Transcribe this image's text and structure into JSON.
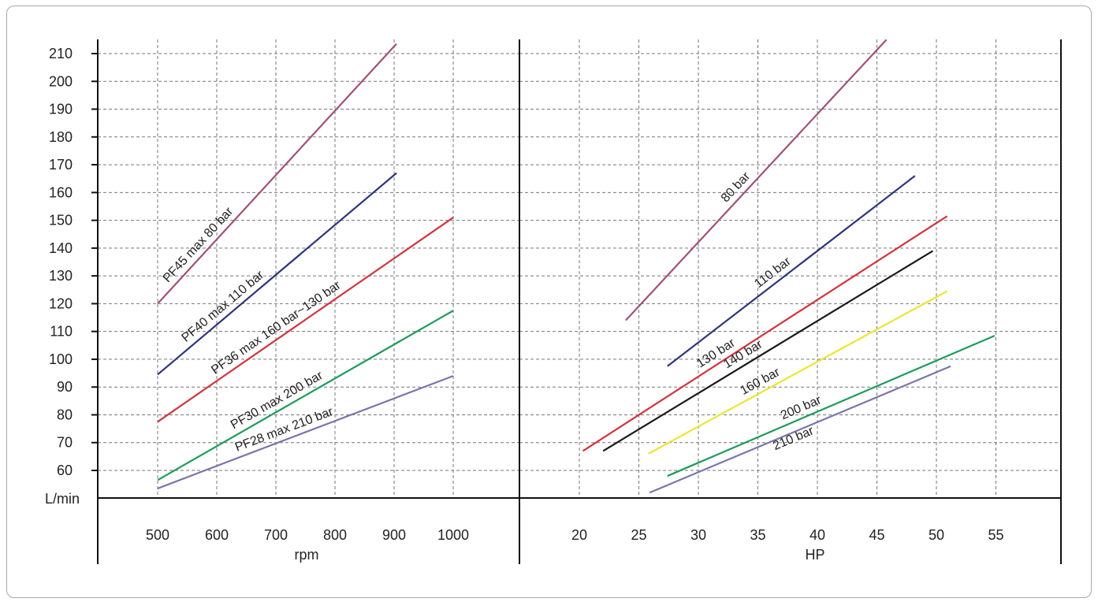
{
  "chart_data": [
    {
      "type": "line",
      "y_unit_label": "L/min",
      "xlabel": "rpm",
      "x_ticks": [
        "500",
        "600",
        "700",
        "800",
        "900",
        "1000"
      ],
      "y_ticks": [
        "60",
        "70",
        "80",
        "90",
        "100",
        "110",
        "120",
        "130",
        "140",
        "150",
        "160",
        "170",
        "180",
        "190",
        "200",
        "210"
      ],
      "xlim": [
        400,
        1110
      ],
      "ylim": [
        50,
        216
      ],
      "grid": true,
      "series": [
        {
          "name": "PF45 max 80 bar",
          "color": "#a0507a",
          "points": [
            [
              500,
              120
            ],
            [
              904,
              213.5
            ]
          ]
        },
        {
          "name": "PF40 max 110 bar",
          "color": "#2e3579",
          "points": [
            [
              500,
              94.5
            ],
            [
              904,
              167
            ]
          ]
        },
        {
          "name": "PF36 max 160 bar~130 bar",
          "color": "#d0343f",
          "points": [
            [
              500,
              77.5
            ],
            [
              1000,
              151
            ]
          ]
        },
        {
          "name": "PF30 max 200 bar",
          "color": "#1e9a5c",
          "points": [
            [
              500,
              56.5
            ],
            [
              1000,
              117.5
            ]
          ]
        },
        {
          "name": "PF28 max 210 bar",
          "color": "#7a76ab",
          "points": [
            [
              500,
              53.5
            ],
            [
              1000,
              94
            ]
          ]
        }
      ]
    },
    {
      "type": "line",
      "xlabel": "HP",
      "x_ticks": [
        "20",
        "25",
        "30",
        "35",
        "40",
        "45",
        "50",
        "55"
      ],
      "xlim": [
        13.5,
        60.5
      ],
      "ylim": [
        50,
        216
      ],
      "grid": true,
      "series": [
        {
          "name": "80 bar",
          "color": "#a0507a",
          "points": [
            [
              23.9,
              114
            ],
            [
              45.8,
              215
            ]
          ]
        },
        {
          "name": "110 bar",
          "color": "#2e3579",
          "points": [
            [
              27.4,
              97.5
            ],
            [
              48.2,
              166
            ]
          ]
        },
        {
          "name": "130 bar",
          "color": "#d0343f",
          "points": [
            [
              20.3,
              67
            ],
            [
              50.9,
              151.5
            ]
          ]
        },
        {
          "name": "140 bar",
          "color": "#1a1a1a",
          "points": [
            [
              22,
              67
            ],
            [
              49.7,
              139
            ]
          ]
        },
        {
          "name": "160 bar",
          "color": "#ece432",
          "points": [
            [
              25.8,
              66
            ],
            [
              50.9,
              124.5
            ]
          ]
        },
        {
          "name": "200 bar",
          "color": "#1e9a5c",
          "points": [
            [
              27.4,
              58
            ],
            [
              54.9,
              108.5
            ]
          ]
        },
        {
          "name": "210 bar",
          "color": "#7a76ab",
          "points": [
            [
              25.9,
              52
            ],
            [
              51.2,
              97.5
            ]
          ]
        }
      ]
    }
  ]
}
